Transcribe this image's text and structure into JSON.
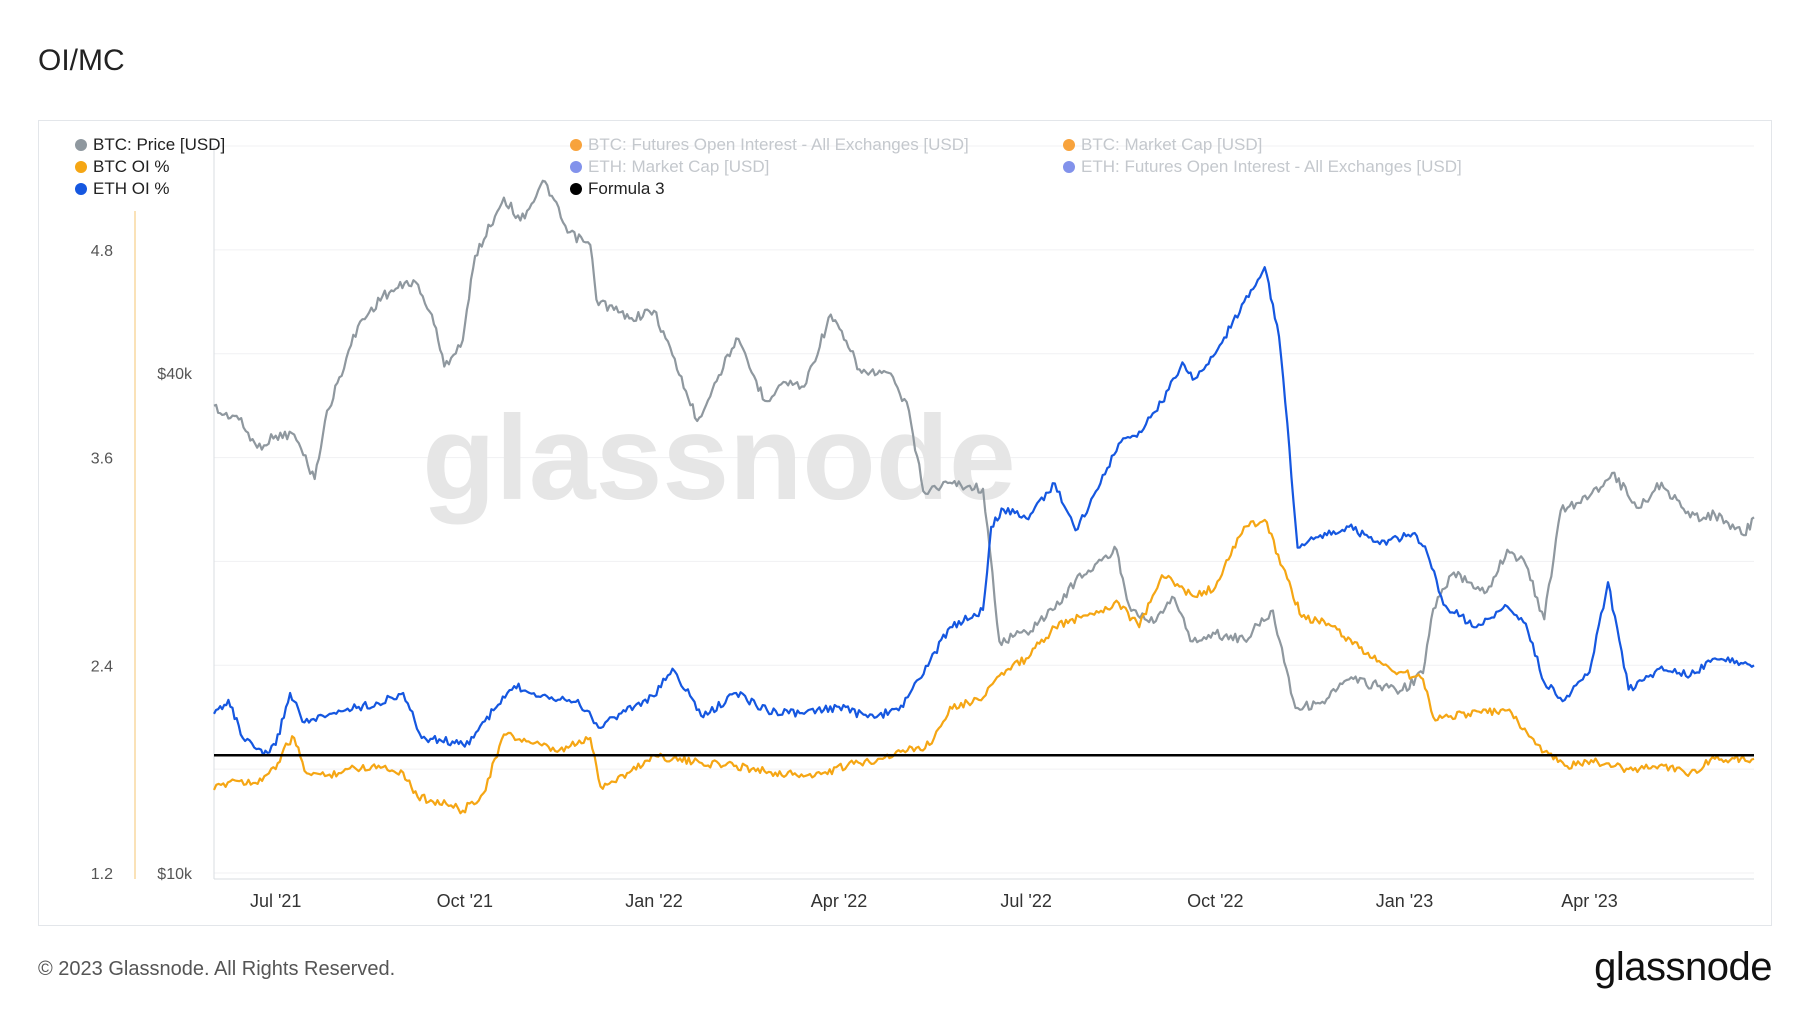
{
  "title": "OI/MC",
  "footer": {
    "copyright": "© 2023 Glassnode. All Rights Reserved.",
    "logo": "glassnode"
  },
  "watermark": "glassnode",
  "colors": {
    "btc_price": "#8f989f",
    "btc_oi_pct": "#f5a614",
    "eth_oi_pct": "#1557e0",
    "formula3": "#000000",
    "btc_oi_usd": "#f7931a",
    "btc_mc": "#f7931a",
    "eth_mc": "#6c7fe8",
    "eth_oi_usd": "#6c7fe8"
  },
  "legend": [
    {
      "label": "BTC: Price [USD]",
      "color": "#8f989f",
      "active": true
    },
    {
      "label": "BTC: Futures Open Interest - All Exchanges [USD]",
      "color": "#f7931a",
      "active": false
    },
    {
      "label": "BTC: Market Cap [USD]",
      "color": "#f7931a",
      "active": false
    },
    {
      "label": "BTC OI %",
      "color": "#f5a614",
      "active": true
    },
    {
      "label": "ETH: Market Cap [USD]",
      "color": "#6c7fe8",
      "active": false
    },
    {
      "label": "ETH: Futures Open Interest - All Exchanges [USD]",
      "color": "#6c7fe8",
      "active": false
    },
    {
      "label": "ETH OI %",
      "color": "#1557e0",
      "active": true
    },
    {
      "label": "Formula 3",
      "color": "#000000",
      "active": true
    }
  ],
  "chart_data": {
    "type": "line",
    "title": "OI/MC",
    "x_range": [
      "2021-06-01",
      "2023-06-20"
    ],
    "x_ticks": [
      {
        "date": "2021-07-01",
        "label": "Jul '21"
      },
      {
        "date": "2021-10-01",
        "label": "Oct '21"
      },
      {
        "date": "2022-01-01",
        "label": "Jan '22"
      },
      {
        "date": "2022-04-01",
        "label": "Apr '22"
      },
      {
        "date": "2022-07-01",
        "label": "Jul '22"
      },
      {
        "date": "2022-10-01",
        "label": "Oct '22"
      },
      {
        "date": "2023-01-01",
        "label": "Jan '23"
      },
      {
        "date": "2023-04-01",
        "label": "Apr '23"
      }
    ],
    "y_left": {
      "ticks": [
        "1.2",
        "2.4",
        "3.6",
        "4.8"
      ],
      "ylim": [
        1.2,
        5.4
      ]
    },
    "y_right": {
      "ticks": [
        "$10k",
        "$40k"
      ],
      "scale": "log",
      "ylim": [
        10000,
        75000
      ]
    },
    "grid": true,
    "legend_position": "top",
    "series": [
      {
        "name": "BTC: Price [USD]",
        "axis": "right",
        "color": "#8f989f",
        "points": [
          [
            "2021-06-01",
            36500
          ],
          [
            "2021-06-05",
            35600
          ],
          [
            "2021-06-12",
            35500
          ],
          [
            "2021-06-22",
            32500
          ],
          [
            "2021-07-01",
            33600
          ],
          [
            "2021-07-10",
            33700
          ],
          [
            "2021-07-20",
            29800
          ],
          [
            "2021-07-25",
            35000
          ],
          [
            "2021-08-01",
            39500
          ],
          [
            "2021-08-10",
            45500
          ],
          [
            "2021-08-22",
            49500
          ],
          [
            "2021-09-06",
            51700
          ],
          [
            "2021-09-15",
            47000
          ],
          [
            "2021-09-21",
            40700
          ],
          [
            "2021-09-30",
            43800
          ],
          [
            "2021-10-06",
            55300
          ],
          [
            "2021-10-20",
            65000
          ],
          [
            "2021-10-28",
            61000
          ],
          [
            "2021-11-09",
            68000
          ],
          [
            "2021-11-20",
            59000
          ],
          [
            "2021-12-01",
            57000
          ],
          [
            "2021-12-04",
            49000
          ],
          [
            "2021-12-20",
            46500
          ],
          [
            "2022-01-01",
            47500
          ],
          [
            "2022-01-10",
            42000
          ],
          [
            "2022-01-22",
            35000
          ],
          [
            "2022-02-10",
            44000
          ],
          [
            "2022-02-24",
            37000
          ],
          [
            "2022-03-05",
            39000
          ],
          [
            "2022-03-15",
            38500
          ],
          [
            "2022-03-28",
            47000
          ],
          [
            "2022-04-12",
            40000
          ],
          [
            "2022-04-25",
            40000
          ],
          [
            "2022-05-05",
            36000
          ],
          [
            "2022-05-12",
            28800
          ],
          [
            "2022-05-25",
            29500
          ],
          [
            "2022-06-10",
            29000
          ],
          [
            "2022-06-18",
            19000
          ],
          [
            "2022-07-01",
            19500
          ],
          [
            "2022-07-15",
            20800
          ],
          [
            "2022-07-25",
            22500
          ],
          [
            "2022-08-14",
            24500
          ],
          [
            "2022-08-20",
            21000
          ],
          [
            "2022-09-01",
            20000
          ],
          [
            "2022-09-10",
            21500
          ],
          [
            "2022-09-20",
            19000
          ],
          [
            "2022-10-01",
            19400
          ],
          [
            "2022-10-15",
            19100
          ],
          [
            "2022-10-29",
            20700
          ],
          [
            "2022-11-09",
            15800
          ],
          [
            "2022-11-21",
            16000
          ],
          [
            "2022-12-05",
            17100
          ],
          [
            "2022-12-20",
            16800
          ],
          [
            "2022-12-31",
            16600
          ],
          [
            "2023-01-10",
            17400
          ],
          [
            "2023-01-15",
            20800
          ],
          [
            "2023-01-25",
            23000
          ],
          [
            "2023-02-10",
            21800
          ],
          [
            "2023-02-20",
            24500
          ],
          [
            "2023-03-01",
            23500
          ],
          [
            "2023-03-10",
            20200
          ],
          [
            "2023-03-18",
            27300
          ],
          [
            "2023-04-01",
            28400
          ],
          [
            "2023-04-12",
            30300
          ],
          [
            "2023-04-25",
            27500
          ],
          [
            "2023-05-06",
            29500
          ],
          [
            "2023-05-20",
            26800
          ],
          [
            "2023-06-01",
            27000
          ],
          [
            "2023-06-15",
            25500
          ],
          [
            "2023-06-20",
            26800
          ]
        ]
      },
      {
        "name": "BTC OI %",
        "axis": "left",
        "color": "#f5a614",
        "points": [
          [
            "2021-06-01",
            1.68
          ],
          [
            "2021-06-10",
            1.74
          ],
          [
            "2021-06-20",
            1.72
          ],
          [
            "2021-07-01",
            1.8
          ],
          [
            "2021-07-05",
            1.92
          ],
          [
            "2021-07-10",
            1.98
          ],
          [
            "2021-07-15",
            1.79
          ],
          [
            "2021-07-25",
            1.76
          ],
          [
            "2021-08-05",
            1.8
          ],
          [
            "2021-08-20",
            1.82
          ],
          [
            "2021-09-01",
            1.78
          ],
          [
            "2021-09-08",
            1.64
          ],
          [
            "2021-09-22",
            1.6
          ],
          [
            "2021-09-30",
            1.56
          ],
          [
            "2021-10-10",
            1.66
          ],
          [
            "2021-10-20",
            2.0
          ],
          [
            "2021-11-01",
            1.96
          ],
          [
            "2021-11-15",
            1.9
          ],
          [
            "2021-12-01",
            1.98
          ],
          [
            "2021-12-06",
            1.7
          ],
          [
            "2021-12-20",
            1.78
          ],
          [
            "2022-01-01",
            1.88
          ],
          [
            "2022-01-20",
            1.84
          ],
          [
            "2022-02-10",
            1.82
          ],
          [
            "2022-03-01",
            1.78
          ],
          [
            "2022-03-20",
            1.76
          ],
          [
            "2022-04-05",
            1.82
          ],
          [
            "2022-04-20",
            1.86
          ],
          [
            "2022-05-01",
            1.9
          ],
          [
            "2022-05-15",
            1.94
          ],
          [
            "2022-05-25",
            2.16
          ],
          [
            "2022-06-08",
            2.2
          ],
          [
            "2022-06-18",
            2.34
          ],
          [
            "2022-07-01",
            2.44
          ],
          [
            "2022-07-15",
            2.62
          ],
          [
            "2022-08-01",
            2.7
          ],
          [
            "2022-08-15",
            2.76
          ],
          [
            "2022-08-25",
            2.62
          ],
          [
            "2022-09-05",
            2.92
          ],
          [
            "2022-09-20",
            2.8
          ],
          [
            "2022-10-01",
            2.85
          ],
          [
            "2022-10-15",
            3.2
          ],
          [
            "2022-10-25",
            3.24
          ],
          [
            "2022-11-05",
            2.9
          ],
          [
            "2022-11-12",
            2.68
          ],
          [
            "2022-11-25",
            2.64
          ],
          [
            "2022-12-10",
            2.5
          ],
          [
            "2022-12-25",
            2.38
          ],
          [
            "2023-01-10",
            2.32
          ],
          [
            "2023-01-15",
            2.1
          ],
          [
            "2023-02-01",
            2.12
          ],
          [
            "2023-02-20",
            2.14
          ],
          [
            "2023-03-10",
            1.9
          ],
          [
            "2023-03-20",
            1.82
          ],
          [
            "2023-04-05",
            1.84
          ],
          [
            "2023-04-20",
            1.8
          ],
          [
            "2023-05-05",
            1.82
          ],
          [
            "2023-05-20",
            1.78
          ],
          [
            "2023-06-01",
            1.86
          ],
          [
            "2023-06-20",
            1.86
          ]
        ]
      },
      {
        "name": "ETH OI %",
        "axis": "left",
        "color": "#1557e0",
        "points": [
          [
            "2021-06-01",
            2.12
          ],
          [
            "2021-06-08",
            2.2
          ],
          [
            "2021-06-15",
            1.98
          ],
          [
            "2021-06-25",
            1.88
          ],
          [
            "2021-07-01",
            1.94
          ],
          [
            "2021-07-08",
            2.24
          ],
          [
            "2021-07-15",
            2.07
          ],
          [
            "2021-07-25",
            2.1
          ],
          [
            "2021-08-05",
            2.15
          ],
          [
            "2021-08-20",
            2.18
          ],
          [
            "2021-09-01",
            2.24
          ],
          [
            "2021-09-10",
            1.98
          ],
          [
            "2021-09-25",
            1.96
          ],
          [
            "2021-10-01",
            1.93
          ],
          [
            "2021-10-15",
            2.14
          ],
          [
            "2021-10-25",
            2.28
          ],
          [
            "2021-11-10",
            2.22
          ],
          [
            "2021-11-25",
            2.2
          ],
          [
            "2021-12-05",
            2.04
          ],
          [
            "2021-12-15",
            2.12
          ],
          [
            "2022-01-01",
            2.22
          ],
          [
            "2022-01-10",
            2.38
          ],
          [
            "2022-01-25",
            2.1
          ],
          [
            "2022-02-10",
            2.24
          ],
          [
            "2022-02-25",
            2.14
          ],
          [
            "2022-03-15",
            2.12
          ],
          [
            "2022-04-01",
            2.16
          ],
          [
            "2022-04-15",
            2.1
          ],
          [
            "2022-04-30",
            2.14
          ],
          [
            "2022-05-10",
            2.32
          ],
          [
            "2022-05-25",
            2.62
          ],
          [
            "2022-06-10",
            2.72
          ],
          [
            "2022-06-14",
            3.2
          ],
          [
            "2022-06-20",
            3.3
          ],
          [
            "2022-07-01",
            3.25
          ],
          [
            "2022-07-15",
            3.45
          ],
          [
            "2022-07-25",
            3.18
          ],
          [
            "2022-08-05",
            3.42
          ],
          [
            "2022-08-15",
            3.68
          ],
          [
            "2022-08-25",
            3.75
          ],
          [
            "2022-09-05",
            3.92
          ],
          [
            "2022-09-15",
            4.15
          ],
          [
            "2022-09-20",
            4.05
          ],
          [
            "2022-10-01",
            4.2
          ],
          [
            "2022-10-15",
            4.5
          ],
          [
            "2022-10-25",
            4.7
          ],
          [
            "2022-11-01",
            4.3
          ],
          [
            "2022-11-05",
            3.8
          ],
          [
            "2022-11-10",
            3.08
          ],
          [
            "2022-11-20",
            3.14
          ],
          [
            "2022-12-05",
            3.2
          ],
          [
            "2022-12-20",
            3.1
          ],
          [
            "2023-01-05",
            3.16
          ],
          [
            "2023-01-12",
            3.05
          ],
          [
            "2023-01-20",
            2.75
          ],
          [
            "2023-02-05",
            2.62
          ],
          [
            "2023-02-20",
            2.74
          ],
          [
            "2023-03-01",
            2.64
          ],
          [
            "2023-03-10",
            2.3
          ],
          [
            "2023-03-20",
            2.2
          ],
          [
            "2023-04-01",
            2.36
          ],
          [
            "2023-04-10",
            2.88
          ],
          [
            "2023-04-20",
            2.26
          ],
          [
            "2023-05-05",
            2.38
          ],
          [
            "2023-05-20",
            2.34
          ],
          [
            "2023-06-01",
            2.44
          ],
          [
            "2023-06-20",
            2.4
          ]
        ]
      },
      {
        "name": "Formula 3",
        "axis": "left",
        "color": "#000000",
        "points": [
          [
            "2021-06-01",
            1.88
          ],
          [
            "2023-06-20",
            1.88
          ]
        ]
      }
    ]
  }
}
